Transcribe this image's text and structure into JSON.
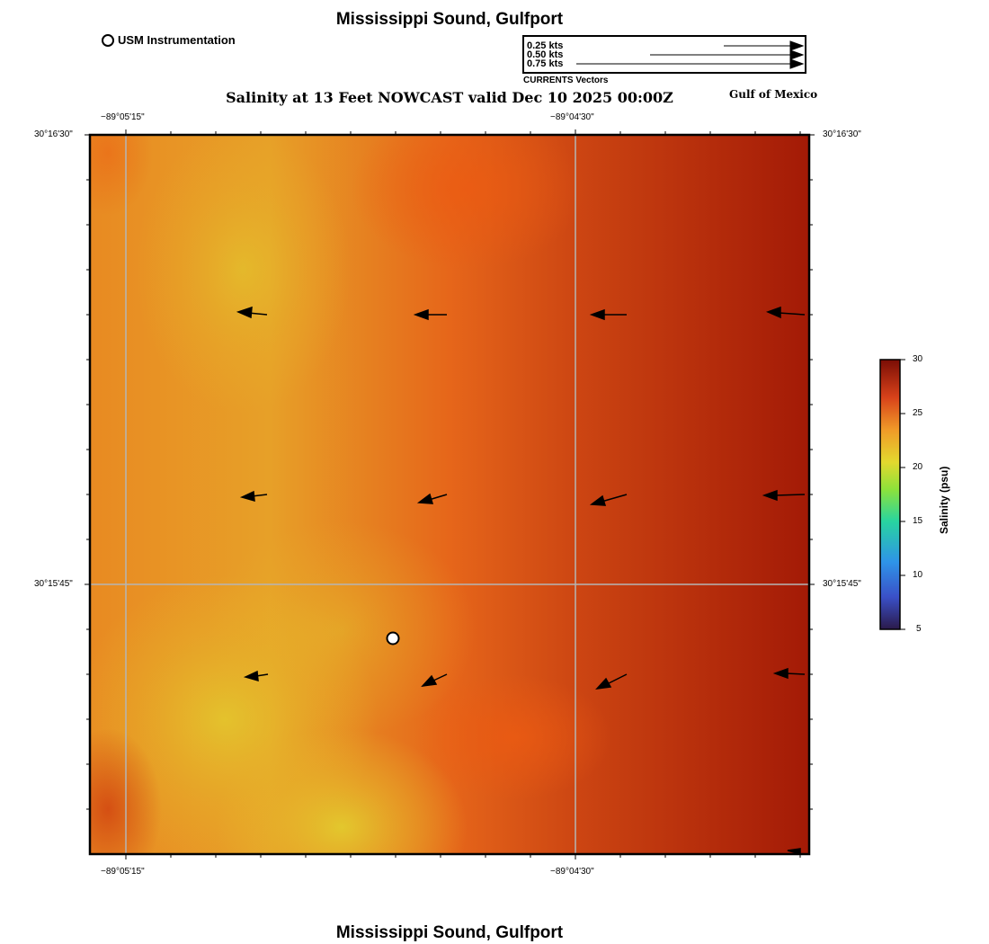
{
  "title_top": "Mississippi Sound, Gulfport",
  "title_bottom": "Mississippi Sound, Gulfport",
  "legend": {
    "instrument_label": "USM Instrumentation"
  },
  "vector_legend": {
    "labels": [
      "0.25 kts",
      "0.50 kts",
      "0.75 kts"
    ],
    "caption": "CURRENTS Vectors"
  },
  "region_label": "Gulf of Mexico",
  "subtitle": "Salinity at 13 Feet NOWCAST valid Dec 10 2025 00:00Z",
  "axes": {
    "top_lon_labels": [
      "−89°05'15\"",
      "−89°04'30\""
    ],
    "bottom_lon_labels": [
      "−89°05'15\"",
      "−89°04'30\""
    ],
    "left_lat_labels": [
      "30°16'30\"",
      "30°15'45\""
    ],
    "right_lat_labels": [
      "30°16'30\"",
      "30°15'45\""
    ]
  },
  "colorbar": {
    "title": "Salinity (psu)",
    "min": 5,
    "max": 30,
    "tick_labels": [
      "30",
      "25",
      "20",
      "15",
      "10",
      "5"
    ]
  },
  "map_data": {
    "field": "salinity",
    "units": "psu",
    "current_vectors": [
      {
        "row": 1,
        "col": 1,
        "direction": "west"
      },
      {
        "row": 1,
        "col": 2,
        "direction": "west"
      },
      {
        "row": 1,
        "col": 3,
        "direction": "west"
      },
      {
        "row": 1,
        "col": 4,
        "direction": "west"
      },
      {
        "row": 2,
        "col": 1,
        "direction": "west"
      },
      {
        "row": 2,
        "col": 2,
        "direction": "west-southwest"
      },
      {
        "row": 2,
        "col": 3,
        "direction": "west-southwest"
      },
      {
        "row": 2,
        "col": 4,
        "direction": "west"
      },
      {
        "row": 3,
        "col": 1,
        "direction": "west"
      },
      {
        "row": 3,
        "col": 2,
        "direction": "southwest"
      },
      {
        "row": 3,
        "col": 3,
        "direction": "southwest"
      },
      {
        "row": 3,
        "col": 4,
        "direction": "west"
      }
    ]
  },
  "colors": {
    "high_salinity": "#a31a06",
    "mid_salinity": "#ea5e12",
    "low_salinity": "#e2c72d",
    "grid": "#b0b0b0"
  }
}
